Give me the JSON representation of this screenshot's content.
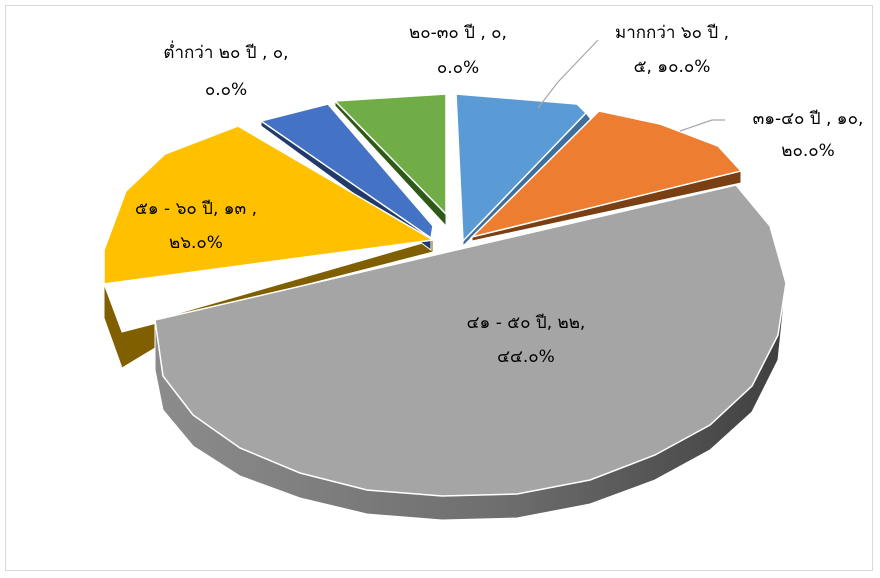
{
  "chart_data": {
    "type": "pie",
    "title": "",
    "slices": [
      {
        "name": "มากกว่า ๖๐ ปี",
        "value": 5,
        "percent": 10.0,
        "color": "#5b9bd5",
        "label_lines": [
          "มากกว่า ๖๐ ปี ,",
          "๕, ๑๐.๐%"
        ]
      },
      {
        "name": "๓๑-๔๐ ปี",
        "value": 10,
        "percent": 20.0,
        "color": "#ed7d31",
        "label_lines": [
          "๓๑-๔๐ ปี , ๑๐,",
          "๒๐.๐%"
        ]
      },
      {
        "name": "๔๑ - ๕๐ ปี",
        "value": 22,
        "percent": 44.0,
        "color": "#a5a5a5",
        "label_lines": [
          "๔๑ - ๕๐ ปี, ๒๒,",
          "๔๔.๐%"
        ]
      },
      {
        "name": "๕๑ - ๖๐ ปี",
        "value": 13,
        "percent": 26.0,
        "color": "#ffc000",
        "label_lines": [
          "๕๑ - ๖๐ ปี, ๑๓ ,",
          "๒๖.๐%"
        ]
      },
      {
        "name": "ต่ำกว่า ๒๐ ปี",
        "value": 0,
        "percent": 0.0,
        "color": "#4472c4",
        "label_lines": [
          "ต่ำกว่า ๒๐ ปี , ๐,",
          "๐.๐%"
        ]
      },
      {
        "name": "๒๐-๓๐ ปี",
        "value": 0,
        "percent": 0.0,
        "color": "#70ad47",
        "label_lines": [
          "๒๐-๓๐ ปี , ๐,",
          "๐.๐%"
        ]
      }
    ],
    "legend": "none",
    "style": "3d-exploded-pie"
  }
}
